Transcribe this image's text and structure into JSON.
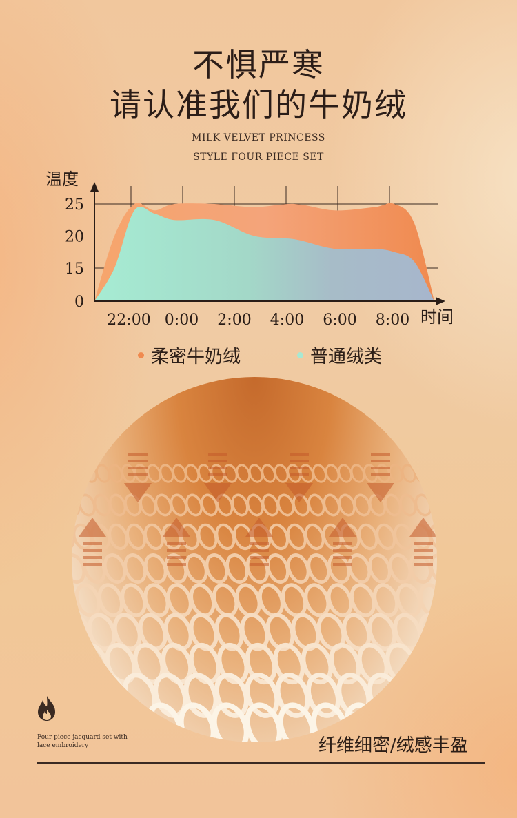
{
  "header": {
    "line1": "不惧严寒",
    "line2": "请认准我们的牛奶绒",
    "subtitle_line1": "MILK VELVET PRINCESS",
    "subtitle_line2": "STYLE FOUR PIECE SET"
  },
  "chart_data": {
    "type": "area",
    "ylabel": "温度",
    "xlabel": "时间",
    "y_ticks": [
      "25",
      "20",
      "15",
      "0"
    ],
    "x_ticks": [
      "22:00",
      "0:00",
      "2:00",
      "4:00",
      "6:00",
      "8:00"
    ],
    "series": [
      {
        "name": "柔密牛奶绒",
        "color": "#f08a4f",
        "points": [
          [
            0,
            0
          ],
          [
            0.5,
            20
          ],
          [
            1,
            25
          ],
          [
            1.5,
            24
          ],
          [
            2,
            25
          ],
          [
            3,
            25
          ],
          [
            4,
            24.5
          ],
          [
            5,
            25
          ],
          [
            6,
            24
          ],
          [
            7,
            24.5
          ],
          [
            7.5,
            25
          ],
          [
            8,
            22
          ],
          [
            8.5,
            0
          ]
        ]
      },
      {
        "name": "普通绒类",
        "color": "#a8e8d2",
        "points": [
          [
            0,
            0
          ],
          [
            0.5,
            15
          ],
          [
            1,
            24
          ],
          [
            1.5,
            23.5
          ],
          [
            2,
            22.5
          ],
          [
            3,
            22.5
          ],
          [
            4,
            20
          ],
          [
            5,
            19.5
          ],
          [
            6,
            18
          ],
          [
            7,
            18
          ],
          [
            7.5,
            17.5
          ],
          [
            8,
            16
          ],
          [
            8.5,
            0
          ]
        ]
      }
    ]
  },
  "legend": [
    {
      "label": "柔密牛奶绒",
      "color": "#f08a4f"
    },
    {
      "label": "普通绒类",
      "color": "#a8e8d2"
    }
  ],
  "footer": {
    "small_text": "Four piece jacquard set with lace embroidery",
    "feature_text": "纤维细密/绒感丰盈",
    "flame_icon": "flame-icon"
  }
}
